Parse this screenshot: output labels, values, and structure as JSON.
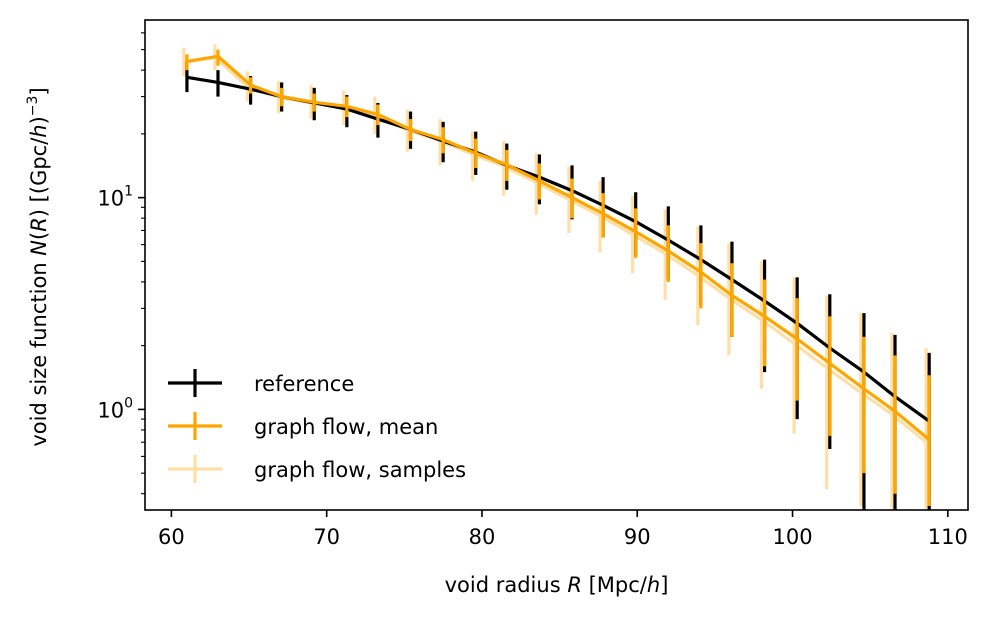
{
  "chart_data": {
    "type": "line",
    "title": "",
    "xlabel": {
      "pre": "void radius ",
      "var": "R",
      "post": " [Mpc/",
      "unit_var": "h",
      "end": "]"
    },
    "ylabel": {
      "pre": "void size function ",
      "var": "N",
      "mid": "(",
      "var2": "R",
      "mid2": ") [(Gpc/",
      "unit_var": "h",
      "end": ")",
      "exp": "−3",
      "close": "]"
    },
    "x_ticks": [
      60,
      70,
      80,
      90,
      100,
      110
    ],
    "x_tick_labels": [
      "60",
      "70",
      "80",
      "90",
      "100",
      "110"
    ],
    "y_scale": "log",
    "y_major_ticks": [
      1,
      10
    ],
    "y_tick_labels": [
      {
        "base": "10",
        "exp": "0"
      },
      {
        "base": "10",
        "exp": "1"
      }
    ],
    "y_minor_ticks": [
      0.4,
      0.5,
      0.6,
      0.7,
      0.8,
      0.9,
      2,
      3,
      4,
      5,
      6,
      7,
      8,
      9,
      20,
      30,
      40,
      50,
      60
    ],
    "xlim": [
      58.3,
      111.3
    ],
    "ylim": [
      0.335,
      69
    ],
    "legend_position": "lower-left",
    "series": [
      {
        "name": "reference",
        "color": "#000000",
        "alpha": 1.0,
        "x": [
          61,
          63,
          65.1,
          67.1,
          69.2,
          71.3,
          73.3,
          75.4,
          77.5,
          79.6,
          81.6,
          83.7,
          85.8,
          87.8,
          89.9,
          92.0,
          94.1,
          96.1,
          98.2,
          100.3,
          102.4,
          104.6,
          106.6,
          108.8
        ],
        "y": [
          37,
          35,
          32.5,
          30,
          28,
          26.2,
          23.5,
          21,
          18.5,
          16.4,
          14.2,
          12.5,
          10.8,
          9.2,
          7.7,
          6.3,
          5.1,
          4.1,
          3.25,
          2.55,
          1.95,
          1.5,
          1.15,
          0.88
        ],
        "y_err_low": [
          31.5,
          30,
          27.5,
          25.5,
          23.2,
          21.5,
          19.2,
          17,
          14.7,
          12.8,
          10.9,
          9.3,
          7.9,
          6.5,
          5.3,
          4.1,
          3.1,
          2.2,
          1.5,
          0.9,
          0.65,
          0.33,
          0.33,
          0.33
        ],
        "y_err_high": [
          44,
          40,
          37.5,
          35,
          33,
          30.5,
          28,
          25.5,
          22.8,
          20.5,
          18,
          16,
          14.2,
          12.5,
          10.6,
          9.1,
          7.4,
          6.2,
          5.1,
          4.2,
          3.5,
          2.85,
          2.25,
          1.85
        ]
      },
      {
        "name": "graph flow, mean",
        "color": "#ffa500",
        "alpha": 1.0,
        "x": [
          61,
          63,
          65.1,
          67.1,
          69.2,
          71.3,
          73.3,
          75.4,
          77.5,
          79.6,
          81.6,
          83.7,
          85.8,
          87.8,
          89.9,
          92.0,
          94.1,
          96.1,
          98.2,
          100.3,
          102.4,
          104.6,
          106.6,
          108.8
        ],
        "y": [
          44,
          46.5,
          34,
          30,
          28.2,
          27,
          24.7,
          21,
          18.8,
          16.2,
          14.3,
          12,
          10,
          8.4,
          6.9,
          5.6,
          4.45,
          3.45,
          2.75,
          2.15,
          1.65,
          1.25,
          0.98,
          0.72
        ],
        "y_err_low": [
          40,
          42,
          31,
          27,
          25.5,
          24,
          22,
          18.5,
          16.2,
          13.8,
          12,
          9.8,
          8,
          6.5,
          5.2,
          4,
          3,
          2.2,
          1.6,
          1.1,
          0.75,
          0.5,
          0.4,
          0.35
        ],
        "y_err_high": [
          47.5,
          50,
          37,
          33,
          31,
          30,
          27.5,
          23.5,
          21.5,
          19,
          16.8,
          14.5,
          12.3,
          10.5,
          8.9,
          7.4,
          6.1,
          4.9,
          4.1,
          3.35,
          2.75,
          2.2,
          1.8,
          1.45
        ]
      },
      {
        "name": "graph flow, samples",
        "color": "#ffa500",
        "alpha": 0.35,
        "x": [
          60.8,
          62.8,
          64.9,
          66.9,
          69.0,
          71.1,
          73.1,
          75.2,
          77.3,
          79.4,
          81.4,
          83.5,
          85.6,
          87.6,
          89.7,
          91.8,
          93.9,
          95.9,
          98.0,
          100.1,
          102.2,
          104.4,
          106.4,
          108.6
        ],
        "y": [
          43.5,
          46,
          33.5,
          29.7,
          28,
          26.8,
          24.5,
          20.8,
          18.6,
          16,
          14.1,
          11.8,
          9.8,
          8.2,
          6.7,
          5.45,
          4.3,
          3.35,
          2.65,
          2.05,
          1.57,
          1.2,
          0.95,
          0.7
        ],
        "y_err_low": [
          37.5,
          40,
          28.5,
          25,
          23.5,
          22,
          20,
          16.5,
          14.2,
          12,
          10.2,
          8.3,
          6.8,
          5.5,
          4.4,
          3.3,
          2.5,
          1.8,
          1.25,
          0.77,
          0.42,
          0.35,
          0.34,
          0.34
        ],
        "y_err_high": [
          51,
          53,
          39.5,
          35.5,
          34,
          32,
          30,
          26,
          23.5,
          20.5,
          18.5,
          16.2,
          14,
          12,
          10.2,
          8.8,
          7.3,
          6.1,
          5,
          4.2,
          3.45,
          2.85,
          2.3,
          1.95
        ]
      }
    ]
  }
}
